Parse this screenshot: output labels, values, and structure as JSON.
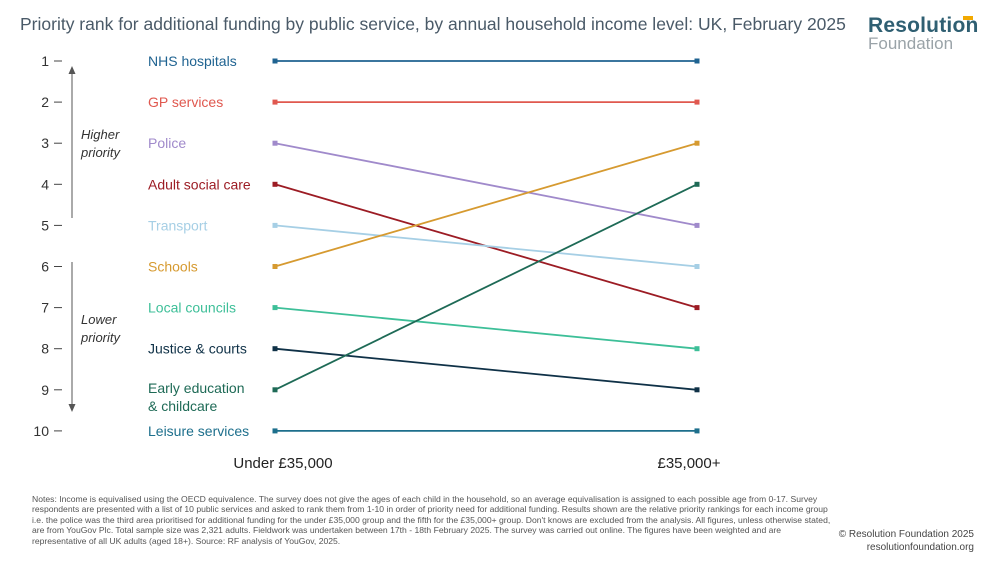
{
  "title": "Priority rank for additional funding by public service, by annual household income level: UK, February 2025",
  "logo": {
    "line1": "Resolution",
    "line2": "Foundation"
  },
  "chart_data": {
    "type": "line",
    "title": "Priority rank for additional funding by public service, by annual household income level: UK, February 2025",
    "x": [
      "Under £35,000",
      "£35,000+"
    ],
    "y_ticks": [
      1,
      2,
      3,
      4,
      5,
      6,
      7,
      8,
      9,
      10
    ],
    "ylim": [
      1,
      10
    ],
    "y_inverted": true,
    "annotations": {
      "higher": "Higher priority",
      "lower": "Lower priority"
    },
    "series": [
      {
        "name": "NHS hospitals",
        "values": [
          1,
          1
        ],
        "color": "#1f6391"
      },
      {
        "name": "GP services",
        "values": [
          2,
          2
        ],
        "color": "#e0584f"
      },
      {
        "name": "Police",
        "values": [
          3,
          5
        ],
        "color": "#a08acb"
      },
      {
        "name": "Adult social care",
        "values": [
          4,
          7
        ],
        "color": "#9c1c24"
      },
      {
        "name": "Transport",
        "values": [
          5,
          6
        ],
        "color": "#a6cfe5"
      },
      {
        "name": "Schools",
        "values": [
          6,
          3
        ],
        "color": "#d69a30"
      },
      {
        "name": "Local councils",
        "values": [
          7,
          8
        ],
        "color": "#3dbf98"
      },
      {
        "name": "Justice & courts",
        "values": [
          8,
          9
        ],
        "color": "#0f3147"
      },
      {
        "name": "Early education & childcare",
        "values": [
          9,
          4
        ],
        "color": "#1e6a56"
      },
      {
        "name": "Leisure services",
        "values": [
          10,
          10
        ],
        "color": "#1d6f8c"
      }
    ],
    "grid": false,
    "legend": "labels left of lines"
  },
  "notes": "Notes: Income is equivalised using the OECD equivalence. The survey does not give the ages of each child in the household, so an average equivalisation is assigned to each possible age from 0-17. Survey respondents are presented with a list of 10 public services and asked to rank them from 1-10 in order of priority need for additional funding. Results shown are the relative priority rankings for each income group i.e. the police was the third area prioritised for additional funding for the under £35,000 group and the fifth for the £35,000+ group. Don't knows are excluded from the analysis. All figures, unless otherwise stated, are from YouGov Plc. Total sample size was 2,321 adults. Fieldwork was undertaken between 17th - 18th February 2025. The survey was carried out online. The figures have been weighted and are representative of all UK adults (aged 18+).       Source: RF analysis of YouGov, 2025.",
  "copyright": {
    "line1": "© Resolution Foundation 2025",
    "line2": "resolutionfoundation.org"
  }
}
